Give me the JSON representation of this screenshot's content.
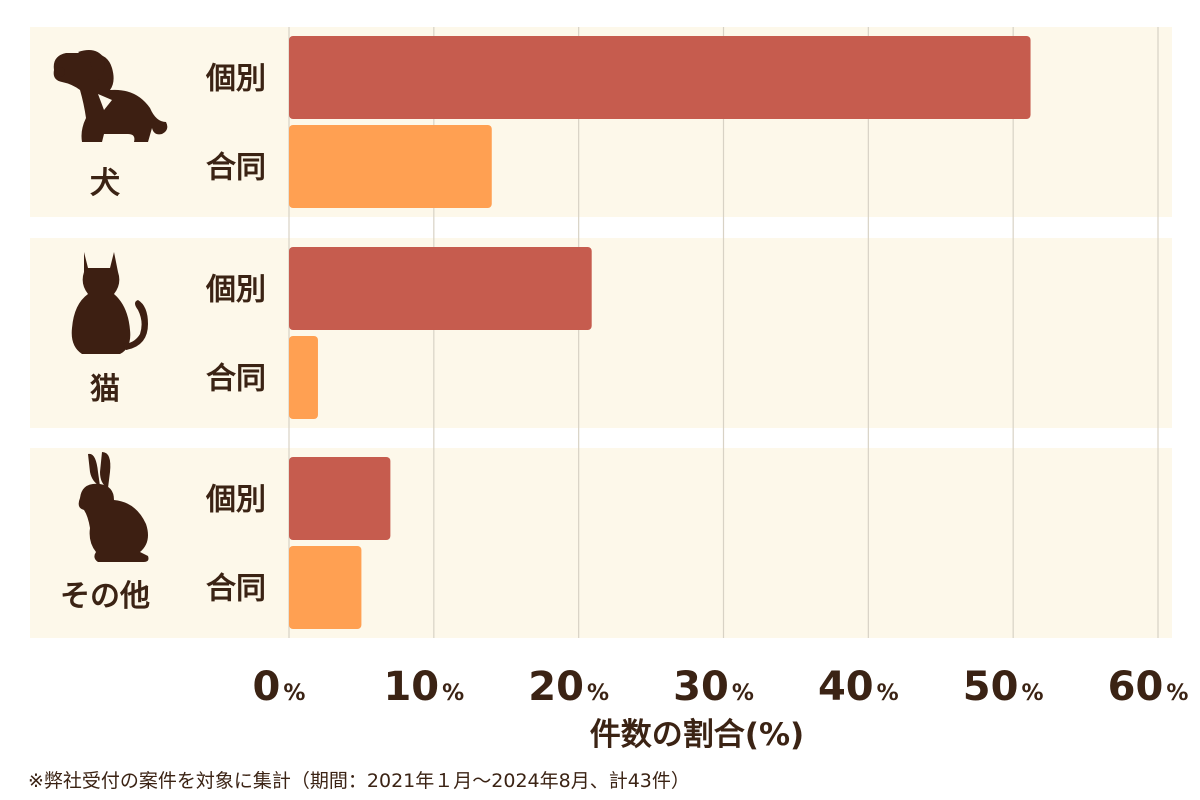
{
  "chart_data": {
    "type": "bar",
    "orientation": "horizontal",
    "groups": [
      {
        "label": "犬",
        "icon": "dog-icon"
      },
      {
        "label": "猫",
        "icon": "cat-icon"
      },
      {
        "label": "その他",
        "icon": "rabbit-icon"
      }
    ],
    "series": [
      {
        "name": "個別",
        "color": "#c65c4e",
        "values": [
          51.2,
          20.9,
          7.0
        ]
      },
      {
        "name": "合同",
        "color": "#ffa052",
        "values": [
          14.0,
          2.0,
          5.0
        ]
      }
    ],
    "xlim": [
      0,
      60
    ],
    "xticks": [
      0,
      10,
      20,
      30,
      40,
      50,
      60
    ],
    "tick_unit": "%",
    "xlabel": "件数の割合(%)",
    "grid": true,
    "panel_color": "#fdf8ea",
    "grid_color": "#d8d2c5"
  },
  "footnote": "※弊社受付の案件を対象に集計（期間：2021年１月～2024年8月、計43件）"
}
